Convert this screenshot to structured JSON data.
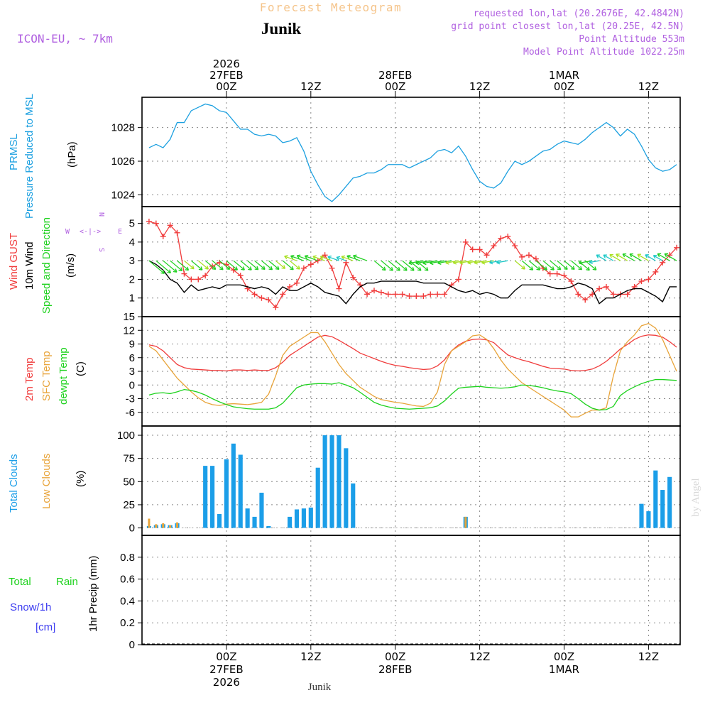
{
  "header": {
    "title": "Forecast Meteogram",
    "location": "Junik",
    "model": "ICON-EU, ~ 7km",
    "requested": "requested lon,lat (20.2676E, 42.4842N)",
    "gridpoint": "grid point closest lon,lat (20.25E, 42.5N)",
    "point_alt": "Point Altitude 553m",
    "model_alt": "Model Point Altitude 1022.25m"
  },
  "footer": {
    "location": "Junik",
    "credit": "by Angel"
  },
  "time_axis": {
    "top": [
      {
        "h": 24,
        "lines": [
          "2026",
          "27FEB",
          "00Z"
        ]
      },
      {
        "h": 36,
        "lines": [
          "12Z"
        ]
      },
      {
        "h": 48,
        "lines": [
          "28FEB",
          "00Z"
        ]
      },
      {
        "h": 60,
        "lines": [
          "12Z"
        ]
      },
      {
        "h": 72,
        "lines": [
          "1MAR",
          "00Z"
        ]
      },
      {
        "h": 84,
        "lines": [
          "12Z"
        ]
      }
    ],
    "bottom": [
      {
        "h": 24,
        "lines": [
          "00Z",
          "27FEB",
          "2026"
        ]
      },
      {
        "h": 36,
        "lines": [
          "12Z"
        ]
      },
      {
        "h": 48,
        "lines": [
          "00Z",
          "28FEB"
        ]
      },
      {
        "h": 60,
        "lines": [
          "12Z"
        ]
      },
      {
        "h": 72,
        "lines": [
          "00Z",
          "1MAR"
        ]
      },
      {
        "h": 84,
        "lines": [
          "12Z"
        ]
      }
    ]
  },
  "panel_labels": {
    "pressure": [
      "PRMSL",
      "Pressure Reduced to MSL",
      "(hPa)"
    ],
    "wind": [
      "Wind GUST",
      "10m Wind",
      "Speed and Direction",
      "(m/s)"
    ],
    "compass": [
      "N",
      "W",
      "E",
      "S"
    ],
    "temp": [
      "2m Temp",
      "SFC Temp",
      "dewpt Temp",
      "(C)"
    ],
    "clouds": [
      "Total Clouds",
      "Low Clouds",
      "(%)"
    ],
    "precip": [
      "Total",
      "Rain",
      "Snow/1h",
      "[cm]",
      "1hr Precip (mm)"
    ]
  },
  "colors": {
    "pressure": "#1ca0e0",
    "gust": "#f03c3c",
    "wind": "#000000",
    "t2m": "#f03c3c",
    "tsfc": "#e8a43a",
    "dewpt": "#1ed21e",
    "total_clouds": "#1b9ee8",
    "low_clouds": "#e8a43a",
    "label_purple": "#b060e0",
    "title_orange": "#f5c48a"
  },
  "chart_data": [
    {
      "type": "line",
      "title": "PRMSL Pressure Reduced to MSL",
      "ylabel": "(hPa)",
      "ylim": [
        1023.3,
        1029.8
      ],
      "yticks": [
        1024,
        1026,
        1028
      ],
      "x_hours": [
        13,
        14,
        15,
        16,
        17,
        18,
        19,
        20,
        21,
        22,
        23,
        24,
        25,
        26,
        27,
        28,
        29,
        30,
        31,
        32,
        33,
        34,
        35,
        36,
        37,
        38,
        39,
        40,
        41,
        42,
        43,
        44,
        45,
        46,
        47,
        48,
        49,
        50,
        51,
        52,
        53,
        54,
        55,
        56,
        57,
        58,
        59,
        60,
        61,
        62,
        63,
        64,
        65,
        66,
        67,
        68,
        69,
        70,
        71,
        72,
        73,
        74,
        75,
        76,
        77,
        78,
        79,
        80,
        81,
        82,
        83,
        84,
        85,
        86,
        87,
        88
      ],
      "series": [
        {
          "name": "PRMSL",
          "values": [
            1026.8,
            1027.0,
            1026.8,
            1027.3,
            1028.3,
            1028.3,
            1029.0,
            1029.2,
            1029.4,
            1029.3,
            1029.0,
            1028.9,
            1028.4,
            1027.9,
            1027.9,
            1027.6,
            1027.5,
            1027.6,
            1027.5,
            1027.1,
            1027.2,
            1027.4,
            1026.6,
            1025.4,
            1024.6,
            1023.9,
            1023.6,
            1024.0,
            1024.5,
            1025.0,
            1025.1,
            1025.3,
            1025.3,
            1025.5,
            1025.8,
            1025.8,
            1025.8,
            1025.6,
            1025.8,
            1026.0,
            1026.2,
            1026.6,
            1026.7,
            1026.5,
            1026.9,
            1026.3,
            1025.5,
            1024.8,
            1024.5,
            1024.4,
            1024.7,
            1025.4,
            1026.0,
            1025.8,
            1026.0,
            1026.3,
            1026.6,
            1026.7,
            1027.0,
            1027.2,
            1027.1,
            1027.0,
            1027.3,
            1027.7,
            1028.0,
            1028.3,
            1028.0,
            1027.5,
            1027.9,
            1027.6,
            1026.9,
            1026.1,
            1025.6,
            1025.4,
            1025.5,
            1025.8
          ]
        }
      ]
    },
    {
      "type": "line",
      "title": "Wind GUST / 10m Wind Speed and Direction",
      "ylabel": "(m/s)",
      "ylim": [
        0.0,
        5.9
      ],
      "yticks": [
        1,
        2,
        3,
        4,
        5
      ],
      "x_hours": [
        13,
        14,
        15,
        16,
        17,
        18,
        19,
        20,
        21,
        22,
        23,
        24,
        25,
        26,
        27,
        28,
        29,
        30,
        31,
        32,
        33,
        34,
        35,
        36,
        37,
        38,
        39,
        40,
        41,
        42,
        43,
        44,
        45,
        46,
        47,
        48,
        49,
        50,
        51,
        52,
        53,
        54,
        55,
        56,
        57,
        58,
        59,
        60,
        61,
        62,
        63,
        64,
        65,
        66,
        67,
        68,
        69,
        70,
        71,
        72,
        73,
        74,
        75,
        76,
        77,
        78,
        79,
        80,
        81,
        82,
        83,
        84,
        85,
        86,
        87,
        88
      ],
      "series": [
        {
          "name": "Wind GUST",
          "values": [
            5.1,
            5.0,
            4.3,
            4.9,
            4.5,
            2.3,
            2.0,
            2.0,
            2.2,
            2.7,
            2.9,
            2.8,
            2.5,
            2.2,
            1.5,
            1.2,
            1.0,
            0.9,
            0.5,
            1.2,
            1.6,
            1.8,
            2.6,
            2.8,
            3.0,
            3.3,
            2.6,
            1.5,
            2.9,
            2.1,
            1.7,
            1.2,
            1.4,
            1.3,
            1.2,
            1.2,
            1.2,
            1.1,
            1.1,
            1.1,
            1.2,
            1.2,
            1.2,
            1.7,
            2.0,
            4.0,
            3.6,
            3.6,
            3.3,
            3.8,
            4.2,
            4.3,
            3.8,
            3.2,
            3.3,
            3.1,
            2.6,
            2.3,
            2.3,
            2.2,
            1.9,
            1.2,
            0.9,
            1.2,
            1.5,
            1.6,
            1.2,
            1.2,
            1.2,
            1.6,
            1.9,
            2.0,
            2.4,
            2.9,
            3.3,
            3.7
          ]
        },
        {
          "name": "10m Wind",
          "values": [
            3.0,
            2.8,
            2.5,
            2.0,
            1.8,
            1.3,
            1.7,
            1.4,
            1.5,
            1.6,
            1.5,
            1.7,
            1.7,
            1.7,
            1.6,
            1.5,
            1.6,
            1.5,
            1.2,
            1.6,
            1.4,
            1.4,
            1.6,
            1.8,
            1.6,
            1.3,
            1.2,
            1.1,
            0.7,
            1.2,
            1.6,
            1.8,
            1.8,
            1.9,
            1.9,
            1.9,
            1.9,
            1.9,
            1.9,
            1.8,
            1.8,
            1.8,
            1.8,
            1.6,
            1.4,
            1.3,
            1.4,
            1.2,
            1.3,
            1.2,
            1.0,
            1.0,
            1.4,
            1.7,
            1.7,
            1.7,
            1.7,
            1.6,
            1.5,
            1.5,
            1.6,
            1.8,
            1.7,
            1.5,
            0.7,
            1.0,
            1.0,
            1.2,
            1.4,
            1.5,
            1.5,
            1.3,
            1.1,
            0.8,
            1.6,
            1.6
          ]
        }
      ]
    },
    {
      "type": "line",
      "title": "2m Temp / SFC Temp / dewpt Temp",
      "ylabel": "(C)",
      "ylim": [
        -9,
        15
      ],
      "yticks": [
        -6,
        -3,
        0,
        3,
        6,
        9,
        12,
        15
      ],
      "x_hours": [
        13,
        14,
        15,
        16,
        17,
        18,
        19,
        20,
        21,
        22,
        23,
        24,
        25,
        26,
        27,
        28,
        29,
        30,
        31,
        32,
        33,
        34,
        35,
        36,
        37,
        38,
        39,
        40,
        41,
        42,
        43,
        44,
        45,
        46,
        47,
        48,
        49,
        50,
        51,
        52,
        53,
        54,
        55,
        56,
        57,
        58,
        59,
        60,
        61,
        62,
        63,
        64,
        65,
        66,
        67,
        68,
        69,
        70,
        71,
        72,
        73,
        74,
        75,
        76,
        77,
        78,
        79,
        80,
        81,
        82,
        83,
        84,
        85,
        86,
        87,
        88
      ],
      "series": [
        {
          "name": "2m Temp",
          "values": [
            8.8,
            8.5,
            7.5,
            6.0,
            4.5,
            3.8,
            3.5,
            3.4,
            3.3,
            3.2,
            3.2,
            3.1,
            3.3,
            3.3,
            3.2,
            3.3,
            3.2,
            3.2,
            3.8,
            5.0,
            6.5,
            7.5,
            8.5,
            9.5,
            10.5,
            10.9,
            10.6,
            9.8,
            8.9,
            8.0,
            7.0,
            6.4,
            5.8,
            5.2,
            4.7,
            4.3,
            4.1,
            3.8,
            3.6,
            3.4,
            3.5,
            4.2,
            5.5,
            7.5,
            8.8,
            9.6,
            10.0,
            10.1,
            9.9,
            9.3,
            7.9,
            6.6,
            6.0,
            5.5,
            5.1,
            4.6,
            4.1,
            3.7,
            3.6,
            3.5,
            3.2,
            3.1,
            3.2,
            3.5,
            4.2,
            5.2,
            6.5,
            7.9,
            8.9,
            10.0,
            10.7,
            11.0,
            10.9,
            10.5,
            9.5,
            8.3
          ]
        },
        {
          "name": "SFC Temp",
          "values": [
            8.5,
            7.5,
            5.5,
            3.5,
            1.5,
            0.0,
            -1.5,
            -2.8,
            -3.8,
            -4.3,
            -4.5,
            -4.2,
            -4.1,
            -4.2,
            -4.3,
            -4.1,
            -3.8,
            -2.0,
            2.0,
            6.5,
            8.5,
            9.5,
            10.5,
            11.5,
            11.5,
            9.5,
            7.0,
            4.5,
            2.5,
            1.0,
            -0.5,
            -1.5,
            -2.5,
            -3.2,
            -3.5,
            -3.8,
            -4.0,
            -4.3,
            -4.6,
            -4.7,
            -4.0,
            -1.5,
            4.5,
            7.5,
            8.5,
            9.5,
            10.8,
            11.0,
            10.0,
            8.0,
            5.5,
            3.5,
            2.0,
            0.5,
            -0.5,
            -1.5,
            -2.5,
            -3.5,
            -4.5,
            -5.5,
            -7.0,
            -7.0,
            -6.2,
            -5.5,
            -5.5,
            -5.0,
            2.0,
            7.5,
            9.5,
            11.0,
            13.0,
            13.5,
            12.5,
            10.0,
            6.5,
            3.0
          ]
        },
        {
          "name": "dewpt Temp",
          "values": [
            -2.2,
            -1.8,
            -1.7,
            -1.9,
            -1.5,
            -1.0,
            -1.2,
            -1.6,
            -2.2,
            -3.0,
            -3.7,
            -4.3,
            -4.8,
            -5.0,
            -5.2,
            -5.3,
            -5.3,
            -5.3,
            -5.0,
            -4.0,
            -2.3,
            -0.6,
            0.0,
            0.2,
            0.3,
            0.3,
            0.2,
            0.5,
            0.0,
            -0.6,
            -1.6,
            -2.7,
            -3.8,
            -4.4,
            -4.8,
            -5.1,
            -5.2,
            -5.3,
            -5.2,
            -5.1,
            -5.0,
            -4.6,
            -3.5,
            -2.0,
            -0.7,
            -0.5,
            -0.4,
            -0.3,
            -0.5,
            -0.6,
            -0.7,
            -0.6,
            -0.4,
            0.0,
            -0.1,
            -0.3,
            -0.6,
            -1.0,
            -1.3,
            -1.5,
            -1.9,
            -3.0,
            -4.2,
            -5.1,
            -5.5,
            -5.4,
            -4.7,
            -2.3,
            -1.2,
            -0.4,
            0.3,
            0.8,
            1.2,
            1.2,
            1.1,
            1.0
          ]
        }
      ]
    },
    {
      "type": "bar",
      "title": "Total Clouds / Low Clouds",
      "ylabel": "(%)",
      "ylim": [
        -8,
        110
      ],
      "yticks": [
        0,
        25,
        50,
        75,
        100
      ],
      "x_hours": [
        13,
        14,
        15,
        16,
        17,
        18,
        19,
        20,
        21,
        22,
        23,
        24,
        25,
        26,
        27,
        28,
        29,
        30,
        31,
        32,
        33,
        34,
        35,
        36,
        37,
        38,
        39,
        40,
        41,
        42,
        43,
        44,
        45,
        46,
        47,
        48,
        49,
        50,
        51,
        52,
        53,
        54,
        55,
        56,
        57,
        58,
        59,
        60,
        61,
        62,
        63,
        64,
        65,
        66,
        67,
        68,
        69,
        70,
        71,
        72,
        73,
        74,
        75,
        76,
        77,
        78,
        79,
        80,
        81,
        82,
        83,
        84,
        85,
        86,
        87,
        88
      ],
      "series": [
        {
          "name": "Total Clouds",
          "values": [
            2,
            3,
            4,
            3,
            5,
            0,
            0,
            0,
            67,
            67,
            15,
            74,
            91,
            79,
            21,
            12,
            38,
            2,
            0,
            0,
            12,
            20,
            21,
            22,
            65,
            100,
            100,
            100,
            86,
            48,
            0,
            0,
            0,
            0,
            0,
            0,
            0,
            0,
            0,
            0,
            0,
            0,
            0,
            0,
            0,
            12,
            0,
            0,
            0,
            0,
            0,
            0,
            0,
            0,
            0,
            0,
            0,
            0,
            0,
            0,
            0,
            0,
            0,
            0,
            0,
            0,
            0,
            0,
            0,
            0,
            26,
            18,
            62,
            41,
            55,
            0
          ]
        },
        {
          "name": "Low Clouds",
          "values": [
            10,
            4,
            5,
            3,
            6,
            0,
            0,
            0,
            0,
            0,
            0,
            0,
            0,
            0,
            0,
            0,
            0,
            0,
            0,
            0,
            0,
            0,
            0,
            0,
            0,
            0,
            0,
            0,
            0,
            0,
            0,
            0,
            0,
            0,
            0,
            0,
            0,
            0,
            0,
            0,
            0,
            0,
            0,
            0,
            0,
            12,
            0,
            0,
            0,
            0,
            0,
            0,
            0,
            0,
            0,
            0,
            0,
            0,
            0,
            0,
            0,
            0,
            0,
            0,
            0,
            0,
            0,
            0,
            0,
            0,
            0,
            0,
            0,
            0,
            0,
            0
          ]
        }
      ]
    },
    {
      "type": "bar",
      "title": "1hr Precip",
      "ylabel": "1hr Precip (mm)",
      "ylim": [
        0,
        1.0
      ],
      "yticks": [
        0,
        0.2,
        0.4,
        0.6,
        0.8
      ],
      "ytick_labels": [
        "0",
        "0.2",
        "0.4",
        "0.6",
        "0.8"
      ],
      "series": [
        {
          "name": "Total Rain",
          "values": []
        },
        {
          "name": "Snow/1h",
          "values": []
        }
      ]
    }
  ]
}
